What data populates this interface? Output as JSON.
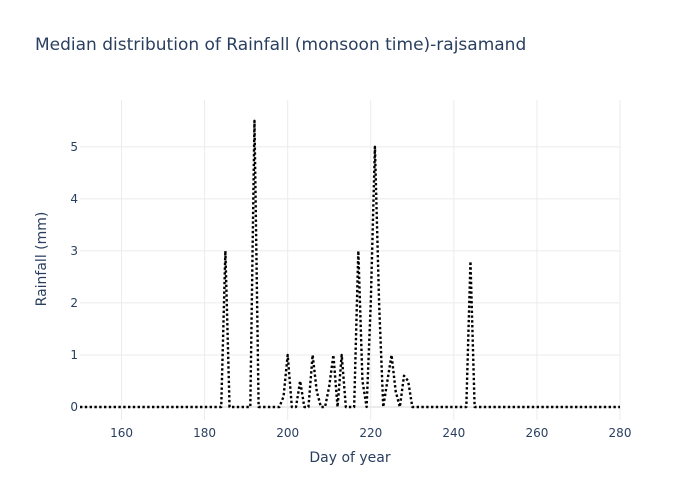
{
  "chart_data": {
    "type": "line",
    "title": "Median distribution of Rainfall (monsoon time)-rajsamand",
    "xlabel": "Day of year",
    "ylabel": "Rainfall (mm)",
    "xlim": [
      150,
      280
    ],
    "ylim": [
      -0.25,
      5.9
    ],
    "xticks": [
      160,
      180,
      200,
      220,
      240,
      260,
      280
    ],
    "yticks": [
      0,
      1,
      2,
      3,
      4,
      5
    ],
    "grid": true,
    "line_style": "dotted",
    "line_color": "#000000",
    "series": [
      {
        "x": [
          150,
          151,
          152,
          153,
          154,
          155,
          156,
          157,
          158,
          159,
          160,
          161,
          162,
          163,
          164,
          165,
          166,
          167,
          168,
          169,
          170,
          171,
          172,
          173,
          174,
          175,
          176,
          177,
          178,
          179,
          180,
          181,
          182,
          183,
          184,
          185,
          186,
          187,
          188,
          189,
          190,
          191,
          192,
          193,
          194,
          195,
          196,
          197,
          198,
          199,
          200,
          201,
          202,
          203,
          204,
          205,
          206,
          207,
          208,
          209,
          210,
          211,
          212,
          213,
          214,
          215,
          216,
          217,
          218,
          219,
          220,
          221,
          222,
          223,
          224,
          225,
          226,
          227,
          228,
          229,
          230,
          231,
          232,
          233,
          234,
          235,
          236,
          237,
          238,
          239,
          240,
          241,
          242,
          243,
          244,
          245,
          246,
          247,
          248,
          249,
          250,
          251,
          252,
          253,
          254,
          255,
          256,
          257,
          258,
          259,
          260,
          261,
          262,
          263,
          264,
          265,
          266,
          267,
          268,
          269,
          270,
          271,
          272,
          273,
          274,
          275,
          276,
          277,
          278,
          279,
          280
        ],
        "y": [
          0,
          0,
          0,
          0,
          0,
          0,
          0,
          0,
          0,
          0,
          0,
          0,
          0,
          0,
          0,
          0,
          0,
          0,
          0,
          0,
          0,
          0,
          0,
          0,
          0,
          0,
          0,
          0,
          0,
          0,
          0,
          0,
          0,
          0,
          0,
          3.0,
          0,
          0,
          0,
          0,
          0,
          0,
          5.5,
          0,
          0,
          0,
          0,
          0,
          0,
          0.2,
          1.0,
          0,
          0,
          0.5,
          0,
          0,
          1.0,
          0.3,
          0,
          0,
          0.4,
          1.0,
          0,
          1.0,
          0,
          0,
          0,
          3.0,
          0.5,
          0,
          2.0,
          5.0,
          2.0,
          0,
          0.5,
          1.0,
          0.3,
          0,
          0.6,
          0.5,
          0,
          0,
          0,
          0,
          0,
          0,
          0,
          0,
          0,
          0,
          0,
          0,
          0,
          0,
          2.8,
          0,
          0,
          0,
          0,
          0,
          0,
          0,
          0,
          0,
          0,
          0,
          0,
          0,
          0,
          0,
          0,
          0,
          0,
          0,
          0,
          0,
          0,
          0,
          0,
          0,
          0,
          0,
          0,
          0,
          0,
          0,
          0,
          0,
          0,
          0,
          0
        ]
      }
    ]
  }
}
